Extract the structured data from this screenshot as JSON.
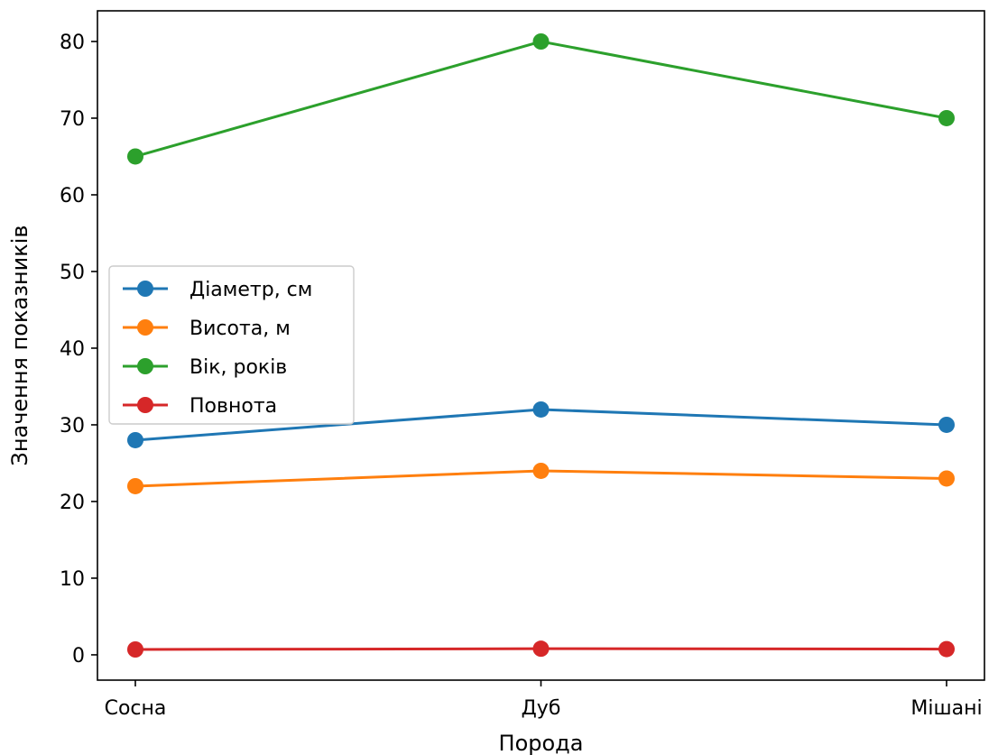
{
  "chart_data": {
    "type": "line",
    "categories": [
      "Сосна",
      "Дуб",
      "Мішані"
    ],
    "series": [
      {
        "name": "Діаметр, см",
        "values": [
          28,
          32,
          30
        ],
        "color": "#1f77b4"
      },
      {
        "name": "Висота, м",
        "values": [
          22,
          24,
          23
        ],
        "color": "#ff7f0e"
      },
      {
        "name": "Вік, років",
        "values": [
          65,
          80,
          70
        ],
        "color": "#2ca02c"
      },
      {
        "name": "Повнота",
        "values": [
          0.7,
          0.8,
          0.75
        ],
        "color": "#d62728"
      }
    ],
    "title": "",
    "xlabel": "Порода",
    "ylabel": "Значення показників",
    "ylim": [
      -3.3,
      84.0
    ],
    "yticks": [
      0,
      10,
      20,
      30,
      40,
      50,
      60,
      70,
      80
    ],
    "grid": false,
    "legend_position": "center-left"
  }
}
